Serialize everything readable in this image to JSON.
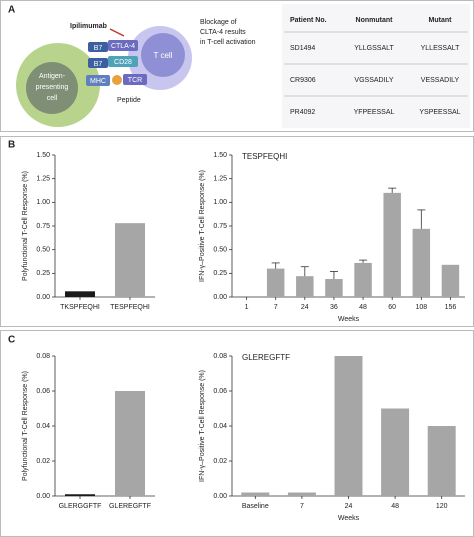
{
  "panel_labels": [
    "A",
    "B",
    "C"
  ],
  "diagram": {
    "drug": "Ipilimumab",
    "caption": [
      "Blockage of",
      "CLTA-4 results",
      "in T-cell activation"
    ],
    "apc_label": [
      "Antigen-",
      "presenting",
      "cell"
    ],
    "t_cell_label": "T cell",
    "receptors": [
      "B7",
      "CTLA-4",
      "B7",
      "CD28",
      "MHC",
      "TCR"
    ],
    "peptide_label": "Peptide"
  },
  "table": {
    "header": [
      "Patient No.",
      "Nonmutant",
      "Mutant"
    ],
    "rows": [
      [
        "SD1494",
        "YLLGSSALT",
        "YLLESSALT"
      ],
      [
        "CR9306",
        "VGSSADILY",
        "VESSADILY"
      ],
      [
        "PR4092",
        "YFPEESSAL",
        "YSPEESSAL"
      ]
    ]
  },
  "chart_data": [
    {
      "type": "bar",
      "ylabel": "Polyfunctional T-Cell Response (%)",
      "categories": [
        "TKSPFEQHI",
        "TESPFEQHI"
      ],
      "values": [
        0.06,
        0.78
      ],
      "colors": [
        "#1a1a1a",
        "#a6a6a6"
      ],
      "ylim": [
        0,
        1.5
      ],
      "yticks": [
        {
          "value": 0,
          "label": "0.00"
        },
        0.25,
        {
          "value": 0.5,
          "label": "0.50"
        },
        0.75,
        {
          "value": 1,
          "label": "1.00"
        },
        1.25,
        {
          "value": 1.5,
          "label": "1.50"
        }
      ]
    },
    {
      "type": "bar",
      "annotation": "TESPFEQHI",
      "ylabel": "IFN-γ–Positive T-Cell Response (%)",
      "xlabel": "Weeks",
      "categories": [
        "1",
        "7",
        "24",
        "36",
        "48",
        "60",
        "108",
        "156"
      ],
      "values": [
        0,
        0.3,
        0.22,
        0.19,
        0.36,
        1.1,
        0.72,
        0.34
      ],
      "errors": [
        null,
        0.06,
        0.1,
        0.08,
        0.03,
        0.05,
        0.2,
        null
      ],
      "color": "#a6a6a6",
      "ylim": [
        0,
        1.5
      ],
      "yticks": [
        {
          "value": 0,
          "label": "0.00"
        },
        0.25,
        {
          "value": 0.5,
          "label": "0.50"
        },
        0.75,
        {
          "value": 1,
          "label": "1.00"
        },
        1.25,
        {
          "value": 1.5,
          "label": "1.50"
        }
      ]
    },
    {
      "type": "bar",
      "ylabel": "Polyfunctional T-Cell Response (%)",
      "categories": [
        "GLERGGFTF",
        "GLEREGFTF"
      ],
      "values": [
        0.001,
        0.06
      ],
      "colors": [
        "#1a1a1a",
        "#a6a6a6"
      ],
      "ylim": [
        0,
        0.08
      ],
      "yticks": [
        {
          "value": 0,
          "label": "0.00"
        },
        0.02,
        0.04,
        0.06,
        0.08
      ]
    },
    {
      "type": "bar",
      "annotation": "GLEREGFTF",
      "ylabel": "IFN-γ–Positive T-Cell Response (%)",
      "xlabel": "Weeks",
      "categories": [
        "Baseline",
        "7",
        "24",
        "48",
        "120"
      ],
      "values": [
        0.002,
        0.002,
        0.08,
        0.05,
        0.04
      ],
      "color": "#a6a6a6",
      "ylim": [
        0,
        0.08
      ],
      "yticks": [
        {
          "value": 0,
          "label": "0.00"
        },
        0.02,
        0.04,
        0.06,
        0.08
      ]
    }
  ]
}
